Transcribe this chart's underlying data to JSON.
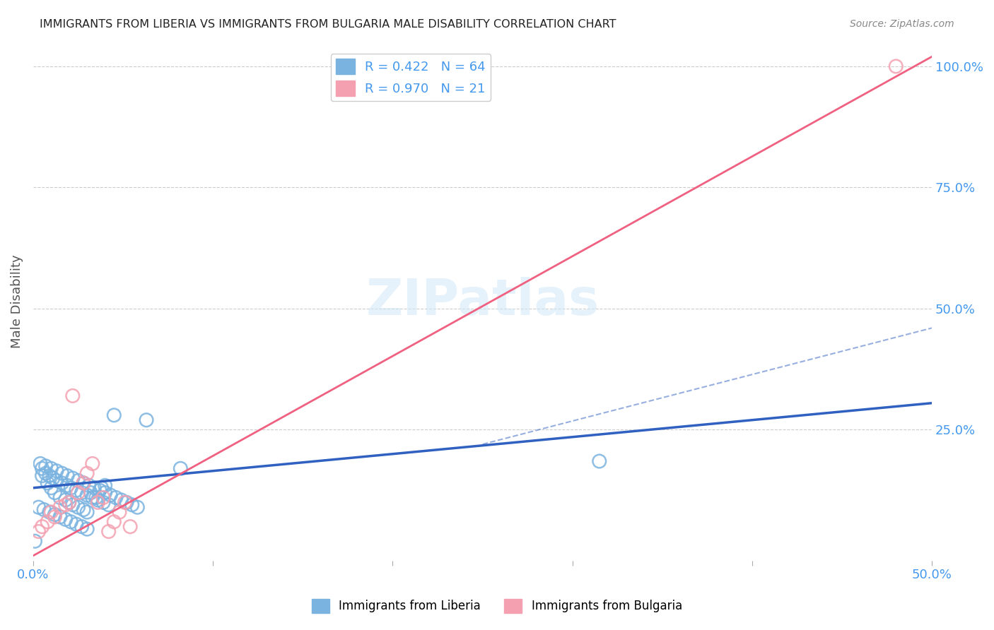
{
  "title": "IMMIGRANTS FROM LIBERIA VS IMMIGRANTS FROM BULGARIA MALE DISABILITY CORRELATION CHART",
  "source": "Source: ZipAtlas.com",
  "ylabel": "Male Disability",
  "xlim": [
    0.0,
    0.5
  ],
  "ylim": [
    -0.02,
    1.05
  ],
  "liberia_R": 0.422,
  "liberia_N": 64,
  "bulgaria_R": 0.97,
  "bulgaria_N": 21,
  "liberia_color": "#7ab3e0",
  "bulgaria_color": "#f4a0b0",
  "liberia_line_color": "#3060c0",
  "bulgaria_line_color": "#f06080",
  "liberia_scatter_x": [
    0.005,
    0.008,
    0.01,
    0.012,
    0.015,
    0.018,
    0.02,
    0.022,
    0.025,
    0.028,
    0.03,
    0.032,
    0.035,
    0.038,
    0.04,
    0.005,
    0.007,
    0.009,
    0.011,
    0.013,
    0.016,
    0.019,
    0.021,
    0.024,
    0.027,
    0.03,
    0.033,
    0.036,
    0.039,
    0.042,
    0.003,
    0.006,
    0.009,
    0.012,
    0.015,
    0.018,
    0.021,
    0.024,
    0.027,
    0.03,
    0.004,
    0.007,
    0.01,
    0.013,
    0.016,
    0.019,
    0.022,
    0.025,
    0.028,
    0.031,
    0.034,
    0.037,
    0.04,
    0.043,
    0.046,
    0.049,
    0.052,
    0.055,
    0.058,
    0.315,
    0.082,
    0.063,
    0.045,
    0.001
  ],
  "liberia_scatter_y": [
    0.155,
    0.14,
    0.13,
    0.12,
    0.11,
    0.105,
    0.1,
    0.095,
    0.09,
    0.085,
    0.08,
    0.12,
    0.11,
    0.13,
    0.135,
    0.17,
    0.16,
    0.155,
    0.15,
    0.145,
    0.14,
    0.135,
    0.13,
    0.125,
    0.12,
    0.115,
    0.11,
    0.105,
    0.1,
    0.095,
    0.09,
    0.085,
    0.08,
    0.075,
    0.07,
    0.065,
    0.06,
    0.055,
    0.05,
    0.045,
    0.18,
    0.175,
    0.17,
    0.165,
    0.16,
    0.155,
    0.15,
    0.145,
    0.14,
    0.135,
    0.13,
    0.125,
    0.12,
    0.115,
    0.11,
    0.105,
    0.1,
    0.095,
    0.09,
    0.185,
    0.17,
    0.27,
    0.28,
    0.02
  ],
  "bulgaria_scatter_x": [
    0.003,
    0.005,
    0.008,
    0.01,
    0.012,
    0.015,
    0.018,
    0.02,
    0.022,
    0.025,
    0.028,
    0.03,
    0.033,
    0.036,
    0.039,
    0.042,
    0.045,
    0.048,
    0.051,
    0.054,
    0.48
  ],
  "bulgaria_scatter_y": [
    0.04,
    0.05,
    0.06,
    0.08,
    0.07,
    0.09,
    0.095,
    0.1,
    0.32,
    0.12,
    0.14,
    0.16,
    0.18,
    0.1,
    0.11,
    0.04,
    0.06,
    0.08,
    0.1,
    0.05,
    1.0
  ],
  "lib_trend": [
    0.0,
    0.5,
    0.13,
    0.305
  ],
  "lib_dash": [
    0.25,
    0.5,
    0.22,
    0.46
  ],
  "bul_trend": [
    0.0,
    0.5,
    -0.01,
    1.02
  ]
}
